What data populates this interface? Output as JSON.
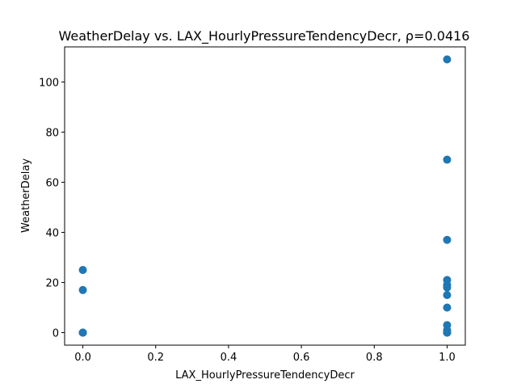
{
  "chart_data": {
    "type": "scatter",
    "title": "WeatherDelay vs. LAX_HourlyPressureTendencyDecr, ρ=0.0416",
    "xlabel": "LAX_HourlyPressureTendencyDecr",
    "ylabel": "WeatherDelay",
    "xlim": [
      -0.05,
      1.05
    ],
    "ylim": [
      -5,
      114
    ],
    "xticks": [
      0.0,
      0.2,
      0.4,
      0.6,
      0.8,
      1.0
    ],
    "xtick_labels": [
      "0.0",
      "0.2",
      "0.4",
      "0.6",
      "0.8",
      "1.0"
    ],
    "yticks": [
      0,
      20,
      40,
      60,
      80,
      100
    ],
    "ytick_labels": [
      "0",
      "20",
      "40",
      "60",
      "80",
      "100"
    ],
    "grid": false,
    "marker_color": "#1f77b4",
    "points": [
      {
        "x": 0,
        "y": 0
      },
      {
        "x": 0,
        "y": 0
      },
      {
        "x": 0,
        "y": 0
      },
      {
        "x": 0,
        "y": 17
      },
      {
        "x": 0,
        "y": 25
      },
      {
        "x": 1,
        "y": 0
      },
      {
        "x": 1,
        "y": 0
      },
      {
        "x": 1,
        "y": 0
      },
      {
        "x": 1,
        "y": 1
      },
      {
        "x": 1,
        "y": 3
      },
      {
        "x": 1,
        "y": 10
      },
      {
        "x": 1,
        "y": 15
      },
      {
        "x": 1,
        "y": 18
      },
      {
        "x": 1,
        "y": 19
      },
      {
        "x": 1,
        "y": 21
      },
      {
        "x": 1,
        "y": 37
      },
      {
        "x": 1,
        "y": 69
      },
      {
        "x": 1,
        "y": 109
      }
    ]
  }
}
